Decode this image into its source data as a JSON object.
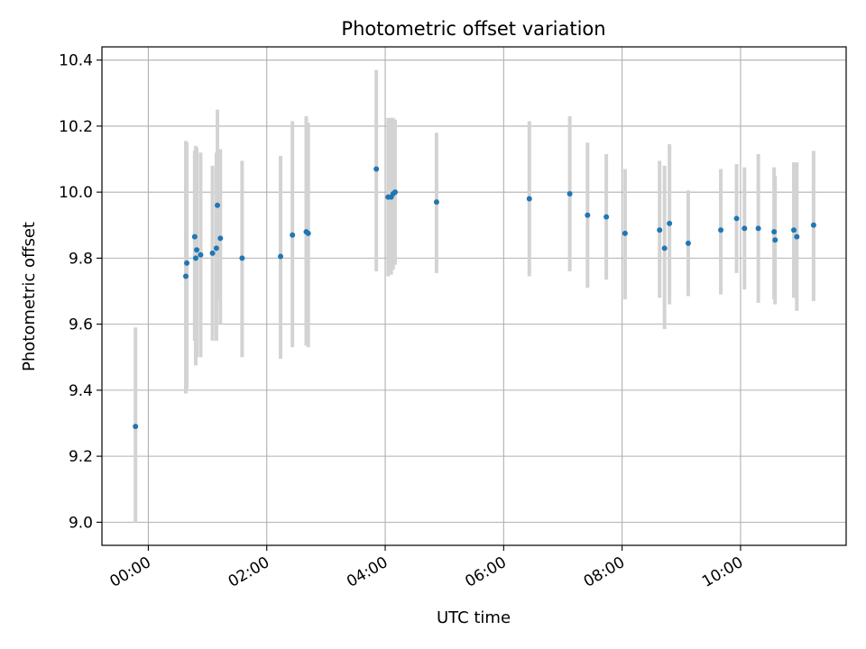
{
  "chart_data": {
    "type": "scatter",
    "title": "Photometric offset variation",
    "xlabel": "UTC time",
    "ylabel": "Photometric offset",
    "x_ticks": [
      "00:00",
      "02:00",
      "04:00",
      "06:00",
      "08:00",
      "10:00"
    ],
    "y_ticks": [
      "9.0",
      "9.2",
      "9.4",
      "9.6",
      "9.8",
      "10.0",
      "10.2",
      "10.4"
    ],
    "xlim": [
      "-00:47",
      "11:47"
    ],
    "ylim": [
      8.93,
      10.44
    ],
    "grid": true,
    "colors": {
      "marker": "#1f77b4",
      "errorbar": "#d3d3d3",
      "grid": "#b0b0b0"
    },
    "series": [
      {
        "points": [
          {
            "x": "-00:13",
            "y": 9.29,
            "yerr_low": 9.0,
            "yerr_high": 9.59
          },
          {
            "x": "00:38",
            "y": 9.745,
            "yerr_low": 9.39,
            "yerr_high": 10.155
          },
          {
            "x": "00:39",
            "y": 9.785,
            "yerr_low": 9.405,
            "yerr_high": 10.15
          },
          {
            "x": "00:47",
            "y": 9.865,
            "yerr_low": 9.55,
            "yerr_high": 10.125
          },
          {
            "x": "00:48",
            "y": 9.8,
            "yerr_low": 9.475,
            "yerr_high": 10.14
          },
          {
            "x": "00:49",
            "y": 9.825,
            "yerr_low": 9.5,
            "yerr_high": 10.135
          },
          {
            "x": "00:53",
            "y": 9.81,
            "yerr_low": 9.5,
            "yerr_high": 10.12
          },
          {
            "x": "01:05",
            "y": 9.815,
            "yerr_low": 9.55,
            "yerr_high": 10.08
          },
          {
            "x": "01:09",
            "y": 9.83,
            "yerr_low": 9.55,
            "yerr_high": 10.12
          },
          {
            "x": "01:10",
            "y": 9.96,
            "yerr_low": 9.67,
            "yerr_high": 10.25
          },
          {
            "x": "01:13",
            "y": 9.86,
            "yerr_low": 9.6,
            "yerr_high": 10.13
          },
          {
            "x": "01:35",
            "y": 9.8,
            "yerr_low": 9.5,
            "yerr_high": 10.095
          },
          {
            "x": "02:14",
            "y": 9.805,
            "yerr_low": 9.495,
            "yerr_high": 10.11
          },
          {
            "x": "02:26",
            "y": 9.87,
            "yerr_low": 9.53,
            "yerr_high": 10.215
          },
          {
            "x": "02:40",
            "y": 9.88,
            "yerr_low": 9.535,
            "yerr_high": 10.23
          },
          {
            "x": "02:42",
            "y": 9.875,
            "yerr_low": 9.53,
            "yerr_high": 10.21
          },
          {
            "x": "03:51",
            "y": 10.07,
            "yerr_low": 9.76,
            "yerr_high": 10.37
          },
          {
            "x": "04:03",
            "y": 9.985,
            "yerr_low": 9.745,
            "yerr_high": 10.225
          },
          {
            "x": "04:06",
            "y": 9.985,
            "yerr_low": 9.75,
            "yerr_high": 10.225
          },
          {
            "x": "04:08",
            "y": 9.995,
            "yerr_low": 9.765,
            "yerr_high": 10.225
          },
          {
            "x": "04:10",
            "y": 10.0,
            "yerr_low": 9.78,
            "yerr_high": 10.22
          },
          {
            "x": "04:52",
            "y": 9.97,
            "yerr_low": 9.755,
            "yerr_high": 10.18
          },
          {
            "x": "06:26",
            "y": 9.98,
            "yerr_low": 9.745,
            "yerr_high": 10.215
          },
          {
            "x": "07:07",
            "y": 9.995,
            "yerr_low": 9.76,
            "yerr_high": 10.23
          },
          {
            "x": "07:25",
            "y": 9.93,
            "yerr_low": 9.71,
            "yerr_high": 10.15
          },
          {
            "x": "07:44",
            "y": 9.925,
            "yerr_low": 9.735,
            "yerr_high": 10.115
          },
          {
            "x": "08:03",
            "y": 9.875,
            "yerr_low": 9.675,
            "yerr_high": 10.07
          },
          {
            "x": "08:38",
            "y": 9.885,
            "yerr_low": 9.68,
            "yerr_high": 10.095
          },
          {
            "x": "08:43",
            "y": 9.83,
            "yerr_low": 9.585,
            "yerr_high": 10.08
          },
          {
            "x": "08:48",
            "y": 9.905,
            "yerr_low": 9.66,
            "yerr_high": 10.145
          },
          {
            "x": "09:07",
            "y": 9.845,
            "yerr_low": 9.685,
            "yerr_high": 10.005
          },
          {
            "x": "09:40",
            "y": 9.885,
            "yerr_low": 9.69,
            "yerr_high": 10.07
          },
          {
            "x": "09:56",
            "y": 9.92,
            "yerr_low": 9.755,
            "yerr_high": 10.085
          },
          {
            "x": "10:04",
            "y": 9.89,
            "yerr_low": 9.705,
            "yerr_high": 10.075
          },
          {
            "x": "10:18",
            "y": 9.89,
            "yerr_low": 9.665,
            "yerr_high": 10.115
          },
          {
            "x": "10:34",
            "y": 9.88,
            "yerr_low": 9.675,
            "yerr_high": 10.075
          },
          {
            "x": "10:35",
            "y": 9.855,
            "yerr_low": 9.66,
            "yerr_high": 10.05
          },
          {
            "x": "10:54",
            "y": 9.885,
            "yerr_low": 9.68,
            "yerr_high": 10.09
          },
          {
            "x": "10:57",
            "y": 9.865,
            "yerr_low": 9.64,
            "yerr_high": 10.09
          },
          {
            "x": "11:14",
            "y": 9.9,
            "yerr_low": 9.67,
            "yerr_high": 10.125
          }
        ]
      }
    ]
  }
}
